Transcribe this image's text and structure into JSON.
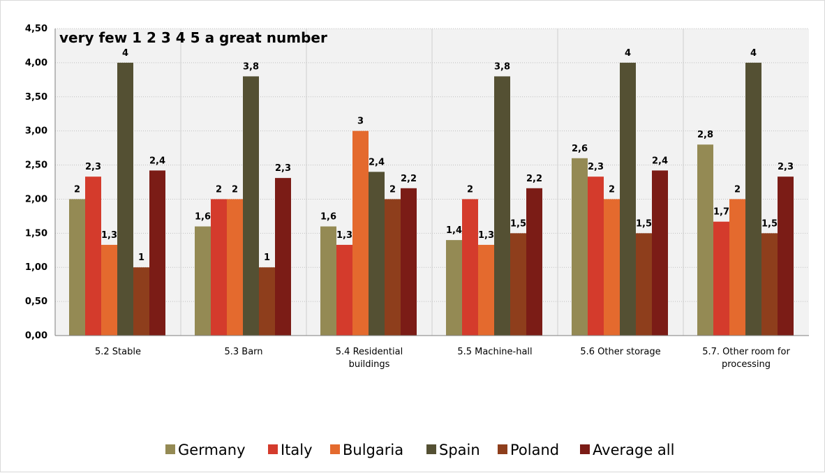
{
  "chart_data": {
    "type": "bar",
    "title": "very few 1 2 3 4 5 a great number",
    "categories": [
      [
        "5.2 Stable"
      ],
      [
        "5.3 Barn"
      ],
      [
        "5.4 Residential",
        "buildings"
      ],
      [
        "5.5 Machine-hall"
      ],
      [
        "5.6 Other storage"
      ],
      [
        "5.7. Other room for",
        "processing"
      ]
    ],
    "series": [
      {
        "name": "Germany",
        "color": "#948a54",
        "values": [
          2.0,
          1.6,
          1.6,
          1.4,
          2.6,
          2.8
        ],
        "labels": [
          "2",
          "1,6",
          "1,6",
          "1,4",
          "2,6",
          "2,8"
        ]
      },
      {
        "name": "Italy",
        "color": "#d43b2c",
        "values": [
          2.33,
          2.0,
          1.33,
          2.0,
          2.33,
          1.67
        ],
        "labels": [
          "2,3",
          "2",
          "1,3",
          "2",
          "2,3",
          "1,7"
        ]
      },
      {
        "name": "Bulgaria",
        "color": "#e46a2e",
        "values": [
          1.33,
          2.0,
          3.0,
          1.33,
          2.0,
          2.0
        ],
        "labels": [
          "1,3",
          "2",
          "3",
          "1,3",
          "2",
          "2"
        ]
      },
      {
        "name": "Spain",
        "color": "#545033",
        "values": [
          4.0,
          3.8,
          2.4,
          3.8,
          4.0,
          4.0
        ],
        "labels": [
          "4",
          "3,8",
          "2,4",
          "3,8",
          "4",
          "4"
        ]
      },
      {
        "name": "Poland",
        "color": "#8e3e1c",
        "values": [
          1.0,
          1.0,
          2.0,
          1.5,
          1.5,
          1.5
        ],
        "labels": [
          "1",
          "1",
          "2",
          "1,5",
          "1,5",
          "1,5"
        ]
      },
      {
        "name": "Average all",
        "color": "#7b1c16",
        "values": [
          2.42,
          2.31,
          2.16,
          2.16,
          2.42,
          2.33
        ],
        "labels": [
          "2,4",
          "2,3",
          "2,2",
          "2,2",
          "2,4",
          "2,3"
        ]
      }
    ],
    "ylim": [
      0,
      4.5
    ],
    "yticks": [
      "0,00",
      "0,50",
      "1,00",
      "1,50",
      "2,00",
      "2,50",
      "3,00",
      "3,50",
      "4,00",
      "4,50"
    ],
    "grid": true,
    "legend": "bottom"
  }
}
